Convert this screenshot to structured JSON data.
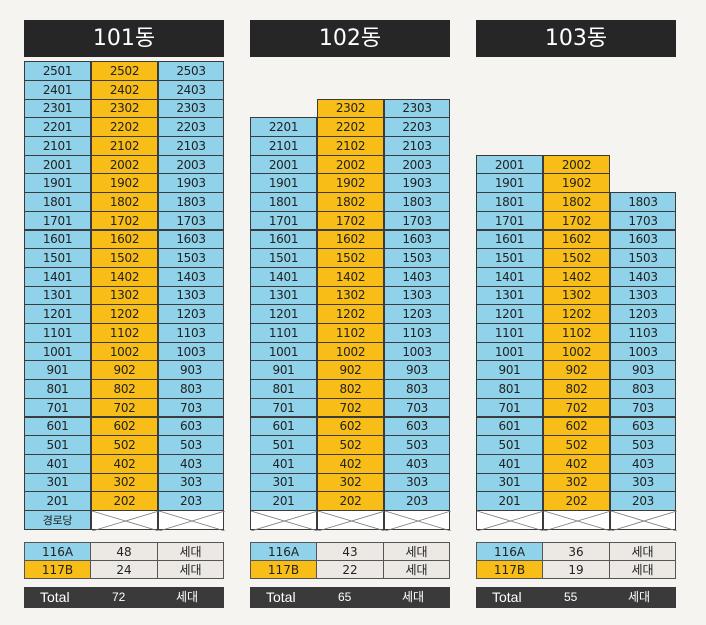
{
  "buildings": [
    {
      "name": "101동",
      "floors": {
        "25": [
          "2501",
          "2502",
          "2503"
        ],
        "24": [
          "2401",
          "2402",
          "2403"
        ],
        "23": [
          "2301",
          "2302",
          "2303"
        ],
        "22": [
          "2201",
          "2202",
          "2203"
        ],
        "21": [
          "2101",
          "2102",
          "2103"
        ],
        "20": [
          "2001",
          "2002",
          "2003"
        ],
        "19": [
          "1901",
          "1902",
          "1903"
        ],
        "18": [
          "1801",
          "1802",
          "1803"
        ],
        "17": [
          "1701",
          "1702",
          "1703"
        ],
        "16": [
          "1601",
          "1602",
          "1603"
        ],
        "15": [
          "1501",
          "1502",
          "1503"
        ],
        "14": [
          "1401",
          "1402",
          "1403"
        ],
        "13": [
          "1301",
          "1302",
          "1303"
        ],
        "12": [
          "1201",
          "1202",
          "1203"
        ],
        "11": [
          "1101",
          "1102",
          "1103"
        ],
        "10": [
          "1001",
          "1002",
          "1003"
        ],
        "9": [
          "901",
          "902",
          "903"
        ],
        "8": [
          "801",
          "802",
          "803"
        ],
        "7": [
          "701",
          "702",
          "703"
        ],
        "6": [
          "601",
          "602",
          "603"
        ],
        "5": [
          "501",
          "502",
          "503"
        ],
        "4": [
          "401",
          "402",
          "403"
        ],
        "3": [
          "301",
          "302",
          "303"
        ],
        "2": [
          "201",
          "202",
          "203"
        ]
      },
      "ground_label": "경로당",
      "stats": {
        "116A": "48",
        "117B": "24",
        "total": "72"
      }
    },
    {
      "name": "102동",
      "floors": {
        "23": [
          null,
          "2302",
          "2303"
        ],
        "22": [
          "2201",
          "2202",
          "2203"
        ],
        "21": [
          "2101",
          "2102",
          "2103"
        ],
        "20": [
          "2001",
          "2002",
          "2003"
        ],
        "19": [
          "1901",
          "1902",
          "1903"
        ],
        "18": [
          "1801",
          "1802",
          "1803"
        ],
        "17": [
          "1701",
          "1702",
          "1703"
        ],
        "16": [
          "1601",
          "1602",
          "1603"
        ],
        "15": [
          "1501",
          "1502",
          "1503"
        ],
        "14": [
          "1401",
          "1402",
          "1403"
        ],
        "13": [
          "1301",
          "1302",
          "1303"
        ],
        "12": [
          "1201",
          "1202",
          "1203"
        ],
        "11": [
          "1101",
          "1102",
          "1103"
        ],
        "10": [
          "1001",
          "1002",
          "1003"
        ],
        "9": [
          "901",
          "902",
          "903"
        ],
        "8": [
          "801",
          "802",
          "803"
        ],
        "7": [
          "701",
          "702",
          "703"
        ],
        "6": [
          "601",
          "602",
          "603"
        ],
        "5": [
          "501",
          "502",
          "503"
        ],
        "4": [
          "401",
          "402",
          "403"
        ],
        "3": [
          "301",
          "302",
          "303"
        ],
        "2": [
          "201",
          "202",
          "203"
        ]
      },
      "ground_label": "",
      "stats": {
        "116A": "43",
        "117B": "22",
        "total": "65"
      }
    },
    {
      "name": "103동",
      "floors": {
        "20": [
          "2001",
          "2002",
          null
        ],
        "19": [
          "1901",
          "1902",
          null
        ],
        "18": [
          "1801",
          "1802",
          "1803"
        ],
        "17": [
          "1701",
          "1702",
          "1703"
        ],
        "16": [
          "1601",
          "1602",
          "1603"
        ],
        "15": [
          "1501",
          "1502",
          "1503"
        ],
        "14": [
          "1401",
          "1402",
          "1403"
        ],
        "13": [
          "1301",
          "1302",
          "1303"
        ],
        "12": [
          "1201",
          "1202",
          "1203"
        ],
        "11": [
          "1101",
          "1102",
          "1103"
        ],
        "10": [
          "1001",
          "1002",
          "1003"
        ],
        "9": [
          "901",
          "902",
          "903"
        ],
        "8": [
          "801",
          "802",
          "803"
        ],
        "7": [
          "701",
          "702",
          "703"
        ],
        "6": [
          "601",
          "602",
          "603"
        ],
        "5": [
          "501",
          "502",
          "503"
        ],
        "4": [
          "401",
          "402",
          "403"
        ],
        "3": [
          "301",
          "302",
          "303"
        ],
        "2": [
          "201",
          "202",
          "203"
        ]
      },
      "ground_label": "",
      "stats": {
        "116A": "36",
        "117B": "19",
        "total": "55"
      }
    }
  ],
  "labels": {
    "type_a": "116A",
    "type_b": "117B",
    "unit": "세대",
    "total": "Total"
  },
  "colors": {
    "type_a": "#8fd2ea",
    "type_b": "#f8bd17",
    "header": "#262626",
    "total_bar": "#3a3a3a"
  }
}
